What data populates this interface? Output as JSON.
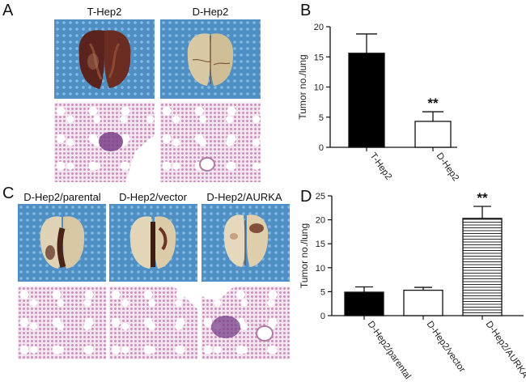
{
  "panels": {
    "a_label": "A",
    "b_label": "B",
    "c_label": "C",
    "d_label": "D",
    "a_titles": [
      "T-Hep2",
      "D-Hep2"
    ],
    "c_titles": [
      "D-Hep2/parental",
      "D-Hep2/vector",
      "D-Hep2/AURKA"
    ]
  },
  "chart_data": [
    {
      "type": "bar",
      "categories": [
        "T-Hep2",
        "D-Hep2"
      ],
      "values": [
        15.6,
        4.3
      ],
      "errors": [
        3.2,
        1.6
      ],
      "fills": [
        "solid",
        "white"
      ],
      "ylabel": "Tumor no./lung",
      "ylim": [
        0,
        20
      ],
      "yticks": [
        0,
        5,
        10,
        15,
        20
      ],
      "annotations": [
        {
          "category": "D-Hep2",
          "text": "**"
        }
      ]
    },
    {
      "type": "bar",
      "categories": [
        "D-Hep2/parental",
        "D-Hep2/vector",
        "D-Hep2/AURKA"
      ],
      "values": [
        4.9,
        5.3,
        20.3
      ],
      "errors": [
        1.1,
        0.6,
        2.5
      ],
      "fills": [
        "solid",
        "white",
        "hstripes"
      ],
      "ylabel": "Tumor no./lung",
      "ylim": [
        0,
        25
      ],
      "yticks": [
        0,
        5,
        10,
        15,
        20,
        25
      ],
      "annotations": [
        {
          "category": "D-Hep2/AURKA",
          "text": "**"
        }
      ]
    }
  ]
}
